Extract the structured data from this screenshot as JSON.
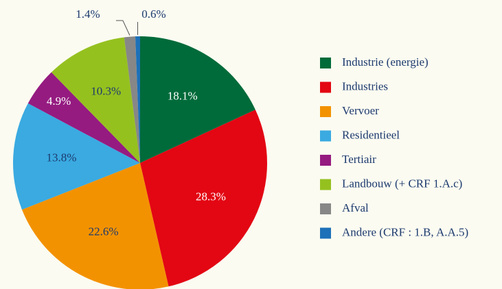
{
  "chart_data": {
    "type": "pie",
    "categories": [
      "Industrie (energie)",
      "Industries",
      "Vervoer",
      "Residentieel",
      "Tertiair",
      "Landbouw (+ CRF 1.A.c)",
      "Afval",
      "Andere (CRF : 1.B, A.A.5)"
    ],
    "values": [
      18.1,
      28.3,
      22.6,
      13.8,
      4.9,
      10.3,
      1.4,
      0.6
    ],
    "value_labels": [
      "18.1%",
      "28.3%",
      "22.6%",
      "13.8%",
      "4.9%",
      "10.3%",
      "1.4%",
      "0.6%"
    ],
    "colors": [
      "#006b3a",
      "#e30613",
      "#f39200",
      "#3aaae1",
      "#951b81",
      "#95c11f",
      "#878787",
      "#1d71b8"
    ],
    "legend": "right"
  }
}
